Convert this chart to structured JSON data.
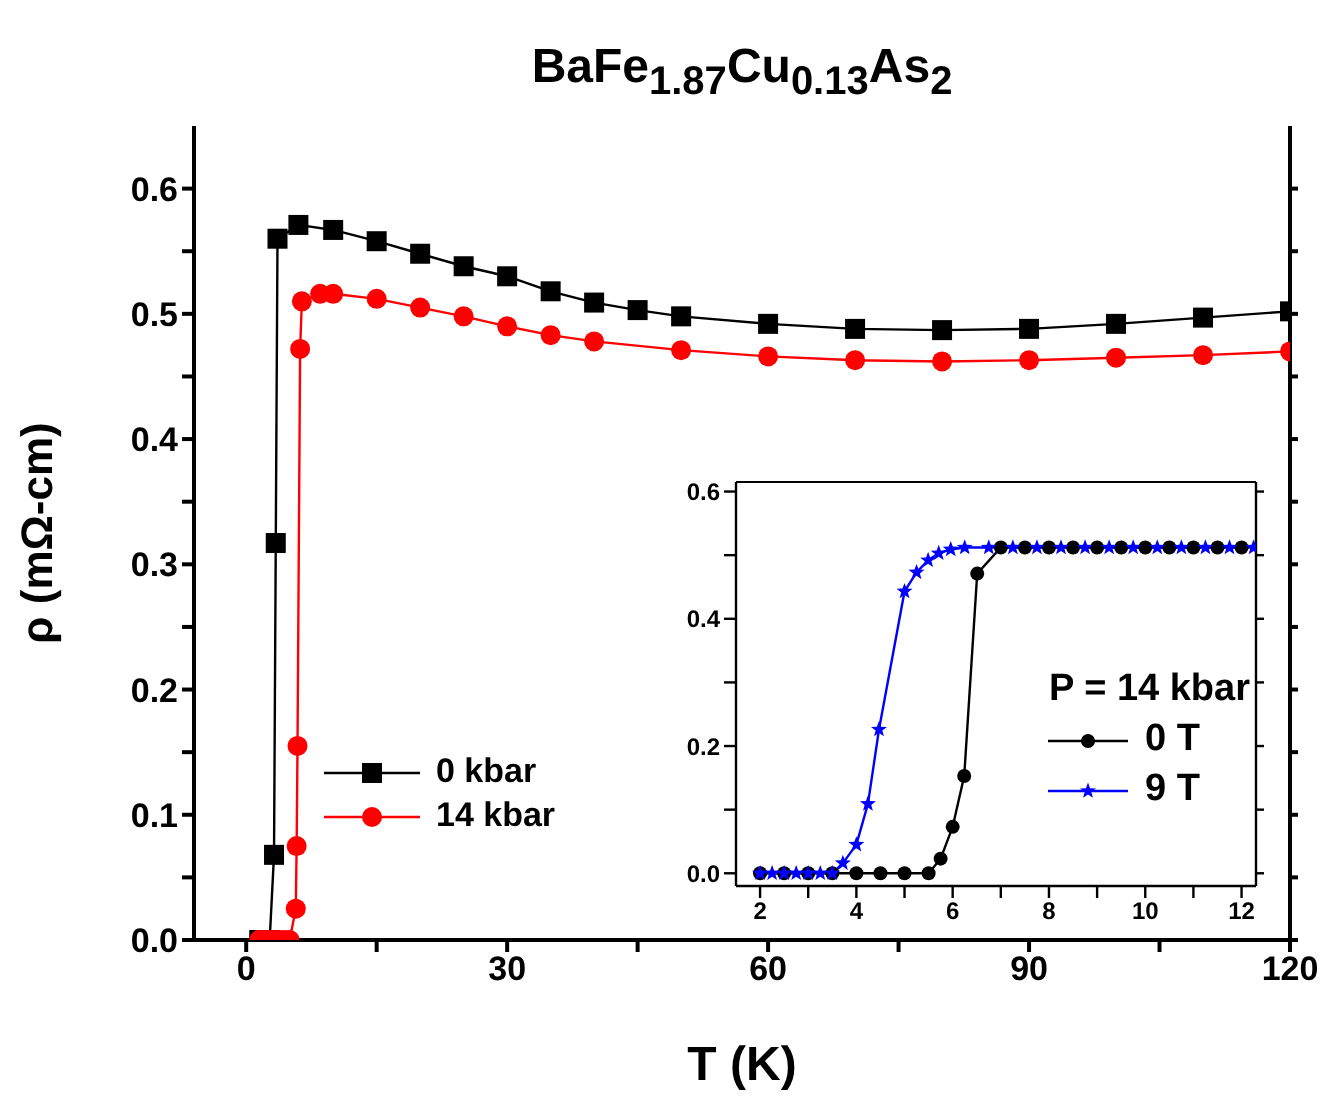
{
  "chart_data": [
    {
      "type": "line",
      "title": "BaFe$_{1.87}$Cu$_{0.13}$As$_{2}$",
      "xlabel": "T (K)",
      "ylabel": "ρ (mΩ-cm)",
      "xlim": [
        -6,
        120
      ],
      "xticks": [
        0,
        {
          "value": 15,
          "label": null
        },
        30,
        {
          "value": 45,
          "label": null
        },
        60,
        {
          "value": 75,
          "label": null
        },
        90,
        {
          "value": 105,
          "label": null
        },
        120
      ],
      "ylim": [
        0,
        0.65
      ],
      "yticks": [
        {
          "value": 0,
          "label": "0.0"
        },
        {
          "value": 0.05,
          "label": null
        },
        0.1,
        {
          "value": 0.15,
          "label": null
        },
        0.2,
        {
          "value": 0.25,
          "label": null
        },
        0.3,
        {
          "value": 0.35,
          "label": null
        },
        0.4,
        {
          "value": 0.45,
          "label": null
        },
        0.5,
        {
          "value": 0.55,
          "label": null
        },
        0.6
      ],
      "legend": "bottom left",
      "series": [
        {
          "name": "0 kbar",
          "color": "#000000",
          "marker": "square",
          "x": [
            1.5,
            1.8,
            2.1,
            2.4,
            2.7,
            3.2,
            3.4,
            3.6,
            6,
            10,
            15,
            20,
            25,
            30,
            35,
            40,
            45,
            50,
            60,
            70,
            80,
            90,
            100,
            110,
            120
          ],
          "values": [
            0,
            0,
            0,
            0,
            0,
            0.068,
            0.317,
            0.56,
            0.571,
            0.567,
            0.558,
            0.548,
            0.538,
            0.53,
            0.518,
            0.509,
            0.503,
            0.498,
            0.492,
            0.488,
            0.487,
            0.488,
            0.492,
            0.497,
            0.502
          ]
        },
        {
          "name": "14 kbar",
          "color": "#ff0000",
          "marker": "circle",
          "x": [
            1.5,
            2,
            2.5,
            3,
            3.5,
            4,
            4.5,
            5,
            5.7,
            5.8,
            5.9,
            6.2,
            6.4,
            8.5,
            10,
            15,
            20,
            25,
            30,
            35,
            40,
            50,
            60,
            70,
            80,
            90,
            100,
            110,
            120
          ],
          "values": [
            0,
            0,
            0,
            0,
            0,
            0,
            0,
            0,
            0.025,
            0.075,
            0.155,
            0.472,
            0.51,
            0.516,
            0.516,
            0.512,
            0.505,
            0.498,
            0.49,
            0.483,
            0.478,
            0.471,
            0.466,
            0.463,
            0.462,
            0.463,
            0.465,
            0.467,
            0.47
          ]
        }
      ]
    },
    {
      "type": "line",
      "legend_title": "P = 14 kbar",
      "legend": "right",
      "xlim": [
        1.5,
        12.3
      ],
      "xticks": [
        2,
        {
          "value": 3,
          "label": null
        },
        4,
        {
          "value": 5,
          "label": null
        },
        6,
        {
          "value": 7,
          "label": null
        },
        8,
        {
          "value": 9,
          "label": null
        },
        10,
        {
          "value": 11,
          "label": null
        },
        12
      ],
      "ylim": [
        -0.02,
        0.615
      ],
      "yticks": [
        {
          "value": 0,
          "label": "0.0"
        },
        {
          "value": 0.1,
          "label": null
        },
        0.2,
        {
          "value": 0.3,
          "label": null
        },
        0.4,
        {
          "value": 0.5,
          "label": null
        },
        0.6
      ],
      "series": [
        {
          "name": "0 T",
          "color": "#000000",
          "marker": "circle",
          "x": [
            2,
            2.5,
            3,
            3.5,
            4,
            4.5,
            5,
            5.5,
            5.75,
            6,
            6.24,
            6.51,
            7,
            7.5,
            8,
            8.5,
            9,
            9.5,
            10,
            10.5,
            11,
            11.5,
            12
          ],
          "values": [
            0,
            0,
            0,
            0,
            0,
            0,
            0,
            0,
            0.023,
            0.073,
            0.153,
            0.471,
            0.512,
            0.512,
            0.512,
            0.512,
            0.512,
            0.512,
            0.512,
            0.512,
            0.512,
            0.512,
            0.512
          ]
        },
        {
          "name": "9 T",
          "color": "#0000ff",
          "marker": "star",
          "x": [
            2,
            2.25,
            2.5,
            2.75,
            3,
            3.25,
            3.5,
            3.72,
            4,
            4.24,
            4.47,
            5,
            5.25,
            5.49,
            5.71,
            5.96,
            6.25,
            6.75,
            7.25,
            7.75,
            8.25,
            8.75,
            9.25,
            9.75,
            10.25,
            10.75,
            11.25,
            11.75,
            12.25
          ],
          "values": [
            0,
            0,
            0,
            0,
            0,
            0,
            0,
            0.016,
            0.045,
            0.109,
            0.226,
            0.443,
            0.473,
            0.492,
            0.503,
            0.509,
            0.512,
            0.512,
            0.512,
            0.512,
            0.512,
            0.512,
            0.512,
            0.512,
            0.512,
            0.512,
            0.512,
            0.512,
            0.512
          ]
        }
      ]
    }
  ]
}
